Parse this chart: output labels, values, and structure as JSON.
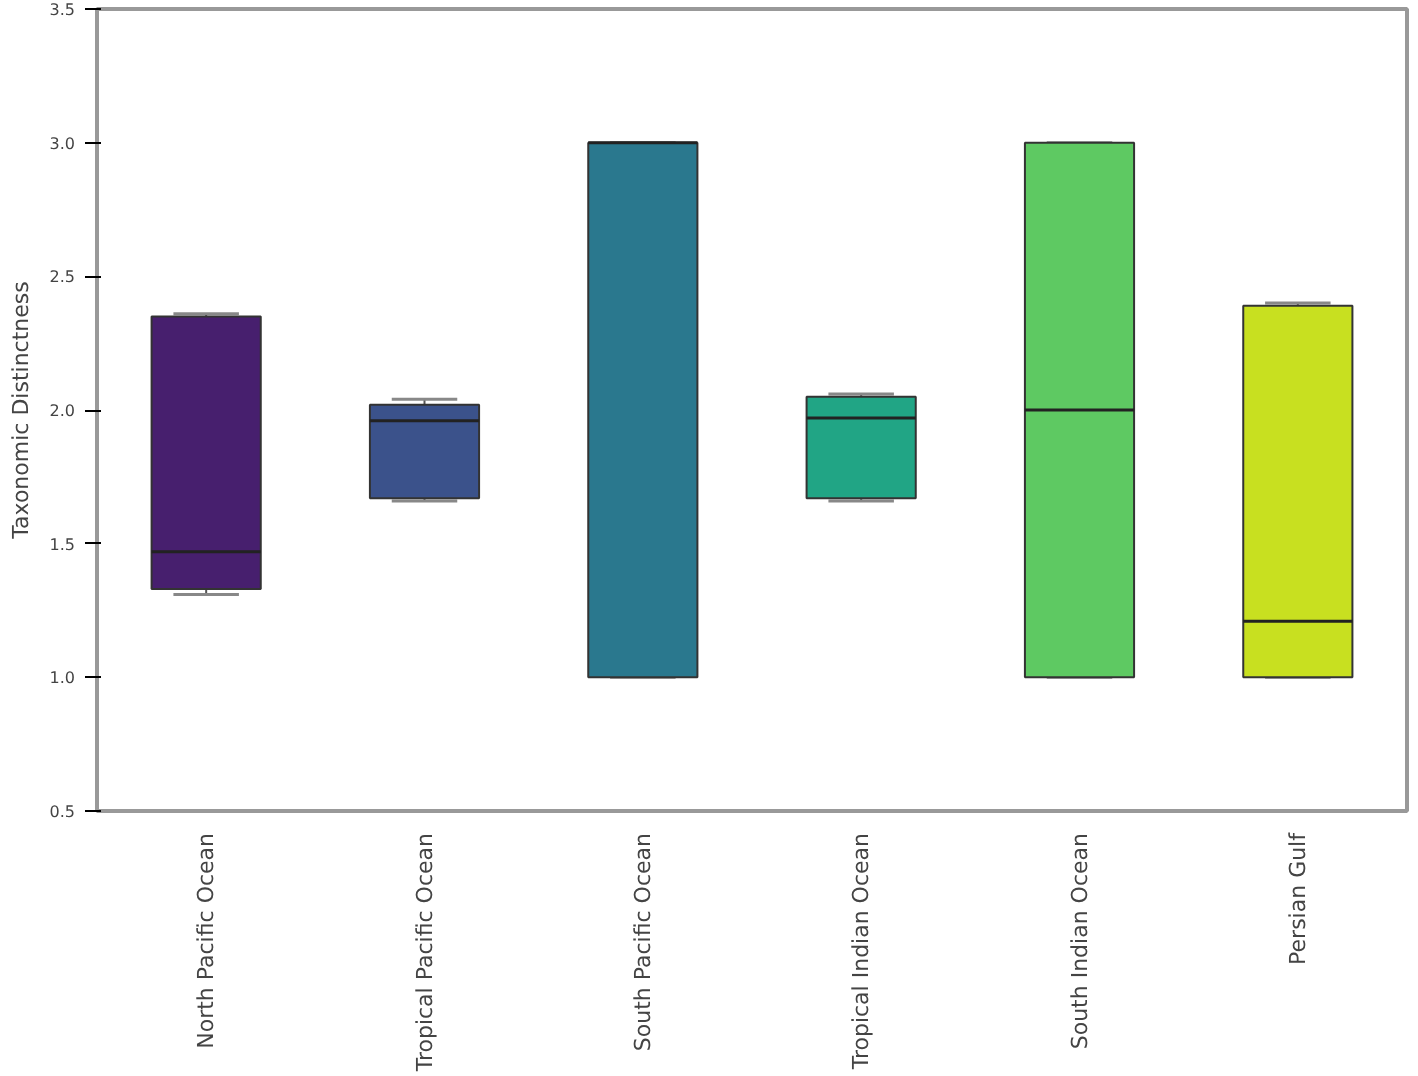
{
  "chart_data": {
    "type": "box",
    "ylabel": "Taxonomic Distinctness",
    "categories": [
      "North Pacific Ocean",
      "Tropical Pacific Ocean",
      "South Pacific Ocean",
      "Tropical Indian Ocean",
      "South Indian Ocean",
      "Persian Gulf"
    ],
    "colors": [
      "#471f6e",
      "#3b528b",
      "#2a788e",
      "#21a585",
      "#5ec962",
      "#c8e020"
    ],
    "boxes": [
      {
        "low": 1.31,
        "q1": 1.33,
        "median": 1.47,
        "q3": 2.35,
        "high": 2.36
      },
      {
        "low": 1.66,
        "q1": 1.67,
        "median": 1.96,
        "q3": 2.02,
        "high": 2.04
      },
      {
        "low": 1.0,
        "q1": 1.0,
        "median": 3.0,
        "q3": 3.0,
        "high": 3.0
      },
      {
        "low": 1.66,
        "q1": 1.67,
        "median": 1.97,
        "q3": 2.05,
        "high": 2.06
      },
      {
        "low": 1.0,
        "q1": 1.0,
        "median": 2.0,
        "q3": 3.0,
        "high": 3.0
      },
      {
        "low": 1.0,
        "q1": 1.0,
        "median": 1.21,
        "q3": 2.39,
        "high": 2.4
      }
    ],
    "ylim": [
      0.5,
      3.5
    ],
    "yticks": [
      0.5,
      {
        "value": 1,
        "label": "1.0"
      },
      1.5,
      {
        "value": 2,
        "label": "2.0"
      },
      2.5,
      {
        "value": 3,
        "label": "3.0"
      },
      3.5
    ],
    "grid": false
  }
}
